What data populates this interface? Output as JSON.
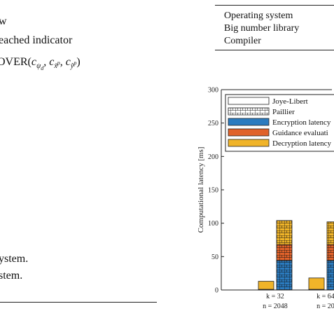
{
  "left_column": {
    "line1": "w",
    "line2": "eached indicator",
    "line3_prefix": "OVER(",
    "line3_args": "c",
    "line3_sub1": "ψ",
    "line3_sub1b": "d",
    "line3_sub2": "x̃",
    "line3_sub2b": "p",
    "line3_sub3": "ỹ",
    "line3_sub3b": "p",
    "line4": "ystem.",
    "line5": "stem."
  },
  "table": {
    "rows": [
      "Operating system",
      "Big number library",
      "Compiler"
    ]
  },
  "chart_data": {
    "type": "bar",
    "ylabel": "Computational latency [ms]",
    "ylim": [
      0,
      300
    ],
    "yticks": [
      0,
      50,
      100,
      150,
      200,
      250,
      300
    ],
    "categories": [
      {
        "k": "k = 32",
        "n": "n = 2048"
      },
      {
        "k": "k = 64",
        "n": "n = 20"
      }
    ],
    "legend": [
      {
        "name": "Joye-Libert",
        "color": "#ffffff",
        "hatch": false
      },
      {
        "name": "Paillier",
        "color": "#ffffff",
        "hatch": true
      },
      {
        "name": "Encryption latency",
        "color": "#2b7bbf",
        "hatch": false
      },
      {
        "name": "Guidance evaluati",
        "color": "#e0622a",
        "hatch": false
      },
      {
        "name": "Decryption latency",
        "color": "#f0b429",
        "hatch": false
      }
    ],
    "series": [
      {
        "scheme": "Joye-Libert",
        "stacks": [
          {
            "encryption": 0.5,
            "guidance": 0.5,
            "decryption": 12
          },
          {
            "encryption": 0.5,
            "guidance": 0.5,
            "decryption": 17
          }
        ]
      },
      {
        "scheme": "Paillier",
        "stacks": [
          {
            "encryption": 44,
            "guidance": 24,
            "decryption": 36
          },
          {
            "encryption": 44,
            "guidance": 24,
            "decryption": 34
          }
        ]
      }
    ]
  }
}
